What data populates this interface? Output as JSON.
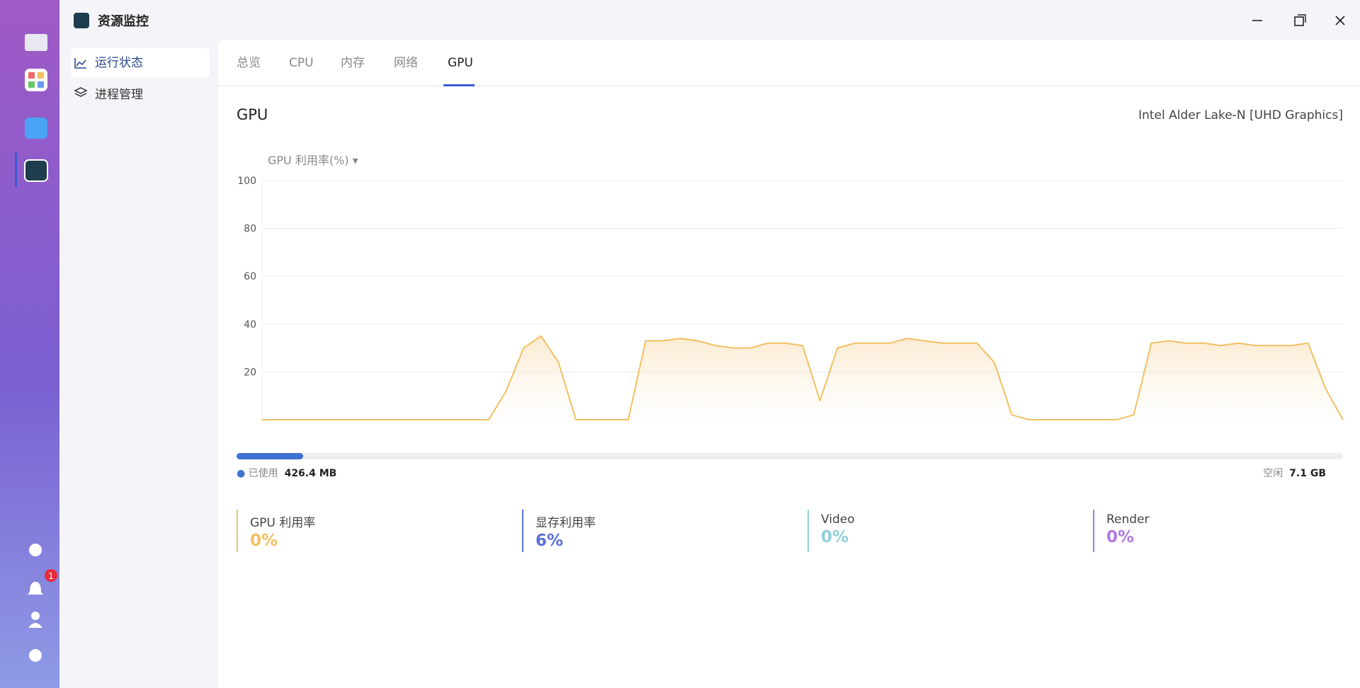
{
  "window": {
    "title": "资源监控",
    "notification_badge": "1"
  },
  "sidebar": {
    "items": [
      "运行状态",
      "进程管理"
    ]
  },
  "tabs": [
    "总览",
    "CPU",
    "内存",
    "网络",
    "GPU"
  ],
  "gpu": {
    "heading": "GPU",
    "device": "Intel Alder Lake-N [UHD Graphics]"
  },
  "chart_data": {
    "type": "line",
    "title": "GPU 利用率(%)",
    "color": "#f2c062",
    "values": [
      0,
      0,
      0,
      0,
      0,
      0,
      0,
      0,
      0,
      0,
      0,
      0,
      0,
      0,
      12,
      30,
      35,
      24,
      0,
      0,
      0,
      0,
      33,
      33,
      34,
      33,
      31,
      30,
      30,
      32,
      32,
      31,
      8,
      30,
      32,
      32,
      32,
      34,
      33,
      32,
      32,
      32,
      24,
      2,
      0,
      0,
      0,
      0,
      0,
      0,
      2,
      32,
      33,
      32,
      32,
      31,
      32,
      31,
      31,
      31,
      32,
      13,
      0
    ],
    "ylim": [
      0,
      100
    ],
    "yticks": [
      20,
      40,
      60,
      80,
      100
    ],
    "grid": true
  },
  "memory": {
    "used_label": "已使用",
    "used": "426.4 MB",
    "free_label": "空闲",
    "free": "7.1 GB"
  },
  "stats": [
    {
      "name": "GPU 利用率",
      "value": "0%",
      "color": "#f2c062"
    },
    {
      "name": "显存利用率",
      "value": "6%",
      "color": "#5a6fd6"
    },
    {
      "name": "Video",
      "value": "0%",
      "color": "#8fd0dc"
    },
    {
      "name": "Render",
      "value": "0%",
      "color": "#b07ae0"
    }
  ]
}
